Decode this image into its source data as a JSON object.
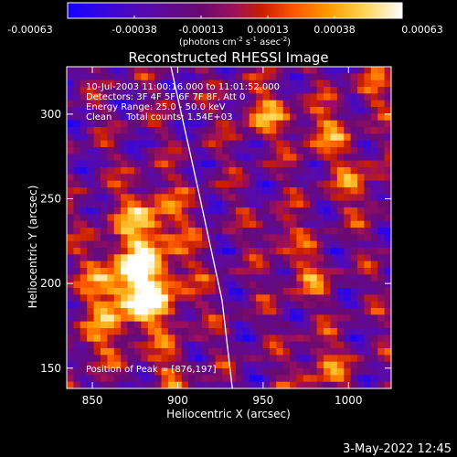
{
  "colorbar": {
    "ticks": [
      "-0.00063",
      "-0.00038",
      "-0.00013",
      "0.00013",
      "0.00038",
      "0.00063"
    ],
    "unit_prefix": "(photons cm",
    "unit_exp1": "-2",
    "unit_mid1": " s",
    "unit_exp2": "-1",
    "unit_mid2": " asec",
    "unit_exp3": "-2",
    "unit_suffix": ")",
    "colors": [
      "#1400ff",
      "#5a0aa8",
      "#5a0a80",
      "#a0105a",
      "#c81e00",
      "#ff5a00",
      "#ff9a00",
      "#ffd24a",
      "#ffffff"
    ]
  },
  "info": {
    "time": "10-Jul-2003 11:00:16.000 to 11:01:52.000",
    "detectors": "Detectors: 3F 4F 5F 6F 7F 8F, Att 0",
    "energy": "Energy Range: 25.0 - 50.0 keV",
    "clean": "Clean     Total counts: 1.54E+03",
    "peak": "Position of Peak = [876,197]"
  },
  "footer": {
    "date": "3-May-2022 12:45"
  },
  "chart_data": {
    "type": "heatmap",
    "title": "Reconstructed RHESSI Image",
    "xlabel": "Heliocentric X (arcsec)",
    "ylabel": "Heliocentric Y (arcsec)",
    "xlim": [
      835,
      1025
    ],
    "ylim": [
      138,
      328
    ],
    "xticks": [
      850,
      900,
      950,
      1000
    ],
    "yticks": [
      150,
      200,
      250,
      300
    ],
    "value_range": [
      -0.00063,
      0.00063
    ],
    "peak": [
      876,
      197
    ],
    "limb_line": [
      [
        896,
        328
      ],
      [
        911,
        260
      ],
      [
        926,
        190
      ],
      [
        932,
        138
      ]
    ]
  }
}
